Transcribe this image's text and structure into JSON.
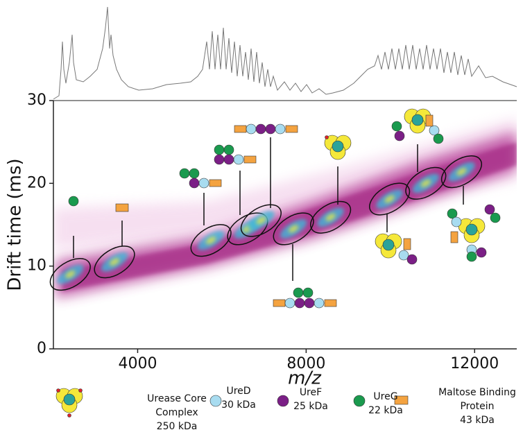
{
  "chart_data": {
    "type": "heatmap",
    "xlabel": "m/z",
    "ylabel": "Drift time (ms)",
    "xlim": [
      2000,
      13000
    ],
    "ylim": [
      0,
      30
    ],
    "xticks": [
      4000,
      8000,
      12000
    ],
    "yticks": [
      0,
      10,
      20,
      30
    ],
    "regions": {
      "x": [
        2400,
        3450,
        5740,
        6610,
        6930,
        7700,
        8580,
        9980,
        10840,
        11690
      ],
      "y": [
        9,
        10.5,
        13.1,
        14.5,
        15.5,
        14.5,
        15.9,
        18.1,
        20,
        21.4
      ]
    },
    "legend_items": [
      {
        "name": "Urease Core Complex",
        "mass": "250 kDa"
      },
      {
        "name": "UreD",
        "mass": "30 kDa"
      },
      {
        "name": "UreF",
        "mass": "25 kDa"
      },
      {
        "name": "UreG",
        "mass": "22 kDa"
      },
      {
        "name": "Maltose Binding Protein",
        "mass": "43 kDa"
      }
    ]
  }
}
